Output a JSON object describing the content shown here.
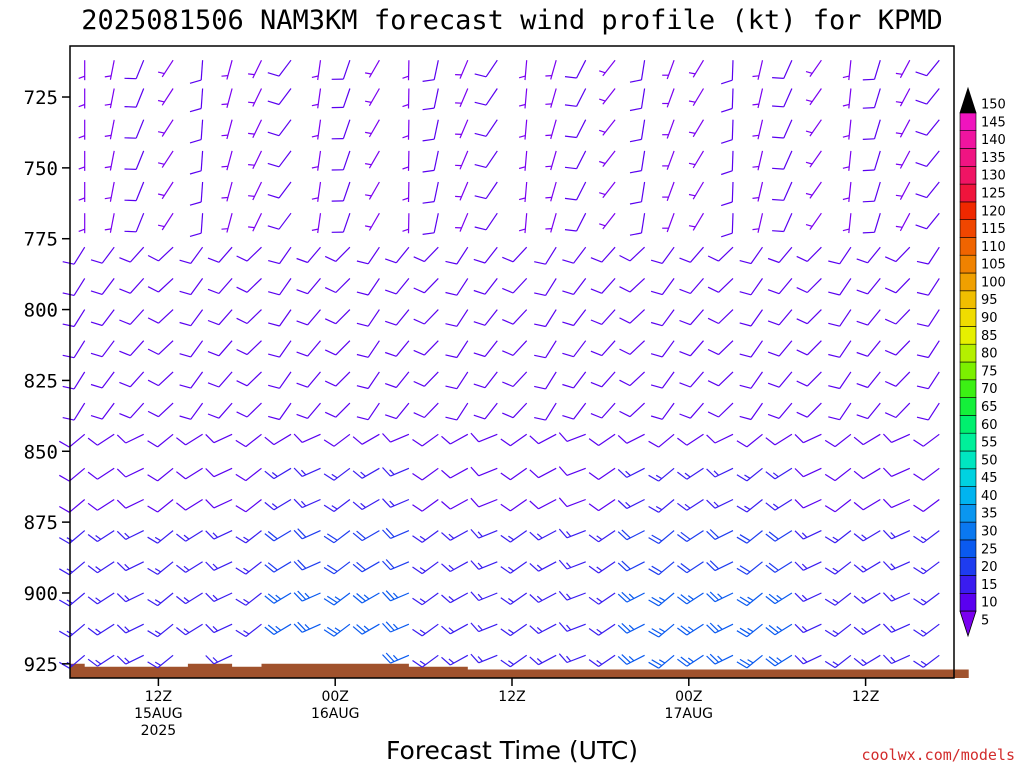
{
  "chart_data": {
    "type": "wind-barb-profile",
    "title": "2025081506 NAM3KM forecast wind profile (kt) for KPMD",
    "xlabel": "Forecast Time (UTC)",
    "credit": "coolwx.com/models",
    "x_range_hours": [
      0,
      60
    ],
    "x_ticks": [
      {
        "hour": 6,
        "lines": [
          "12Z",
          "15AUG",
          "2025"
        ]
      },
      {
        "hour": 18,
        "lines": [
          "00Z",
          "16AUG"
        ]
      },
      {
        "hour": 30,
        "lines": [
          "12Z"
        ]
      },
      {
        "hour": 42,
        "lines": [
          "00Z",
          "17AUG"
        ]
      },
      {
        "hour": 54,
        "lines": [
          "12Z"
        ]
      }
    ],
    "y_axis": {
      "label": "",
      "range_hPa": [
        930,
        707
      ],
      "ticks": [
        725,
        750,
        775,
        800,
        825,
        850,
        875,
        900,
        925
      ]
    },
    "pressure_levels": [
      712,
      722,
      733,
      744,
      755,
      766,
      778,
      789,
      800,
      811,
      822,
      833,
      844,
      856,
      867,
      878,
      889,
      900,
      911,
      922
    ],
    "ground_pressure": [
      925,
      926,
      926,
      926,
      926,
      926,
      926,
      926,
      925,
      925,
      925,
      926,
      926,
      925,
      925,
      925,
      925,
      925,
      925,
      925,
      925,
      925,
      925,
      926,
      926,
      926,
      926,
      927,
      927,
      927,
      927,
      927,
      927,
      927,
      927,
      927,
      927,
      927,
      927,
      927,
      927,
      927,
      927,
      927,
      927,
      927,
      927,
      927,
      927,
      927,
      927,
      927,
      927,
      927,
      927,
      927,
      927,
      927,
      927,
      927,
      927
    ],
    "color_scale": {
      "units": "kt",
      "ticks": [
        5,
        10,
        15,
        20,
        25,
        30,
        35,
        40,
        45,
        50,
        55,
        60,
        65,
        70,
        75,
        80,
        85,
        90,
        95,
        100,
        105,
        110,
        115,
        120,
        125,
        130,
        135,
        140,
        145,
        150
      ],
      "colors": [
        "#7a00f0",
        "#5a00f0",
        "#3a1cf0",
        "#1e3cf0",
        "#0a5af0",
        "#0a78f0",
        "#0a96f0",
        "#00b4f0",
        "#00d2e0",
        "#00e6c0",
        "#00f09a",
        "#00f06e",
        "#14f03a",
        "#3cf014",
        "#7cf000",
        "#b4f000",
        "#e6f000",
        "#f0dc00",
        "#f0be00",
        "#f0a000",
        "#f08200",
        "#f06400",
        "#f04600",
        "#f02800",
        "#f0143c",
        "#f01464",
        "#f01482",
        "#f014a0",
        "#f014be",
        "#f014dc"
      ]
    },
    "wind_regimes": {
      "surface": {
        "direction_deg": 240,
        "speed_kt": [
          10,
          28
        ]
      },
      "mid_level": {
        "direction_deg": 220,
        "speed_kt": [
          8,
          14
        ]
      },
      "upper_level": {
        "direction_deg": 200,
        "speed_kt": [
          5,
          10
        ]
      }
    }
  }
}
